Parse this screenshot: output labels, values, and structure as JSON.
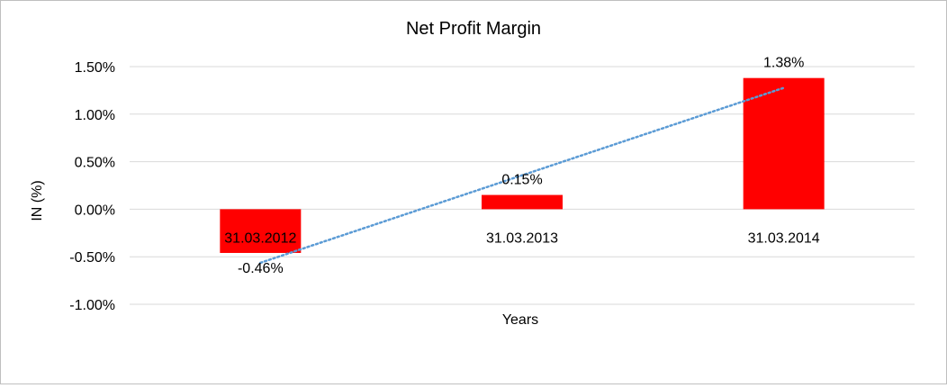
{
  "chart_data": {
    "type": "bar",
    "title": "Net Profit Margin",
    "xlabel": "Years",
    "ylabel": "IN (%)",
    "categories": [
      "31.03.2012",
      "31.03.2013",
      "31.03.2014"
    ],
    "series": [
      {
        "values": [
          -0.46,
          0.15,
          1.38
        ],
        "color": "#ff0000"
      }
    ],
    "data_labels": [
      "-0.46%",
      "0.15%",
      "1.38%"
    ],
    "ylim": [
      -1.0,
      1.5
    ],
    "yticks": [
      1.5,
      1.0,
      0.5,
      0.0,
      -0.5,
      -1.0
    ],
    "ytick_labels": [
      "1.50%",
      "1.00%",
      "0.50%",
      "0.00%",
      "-0.50%",
      "-1.00%"
    ],
    "grid": true,
    "legend": "none",
    "trendline": {
      "type": "linear",
      "style": "dotted",
      "color": "#5b9bd5"
    }
  }
}
